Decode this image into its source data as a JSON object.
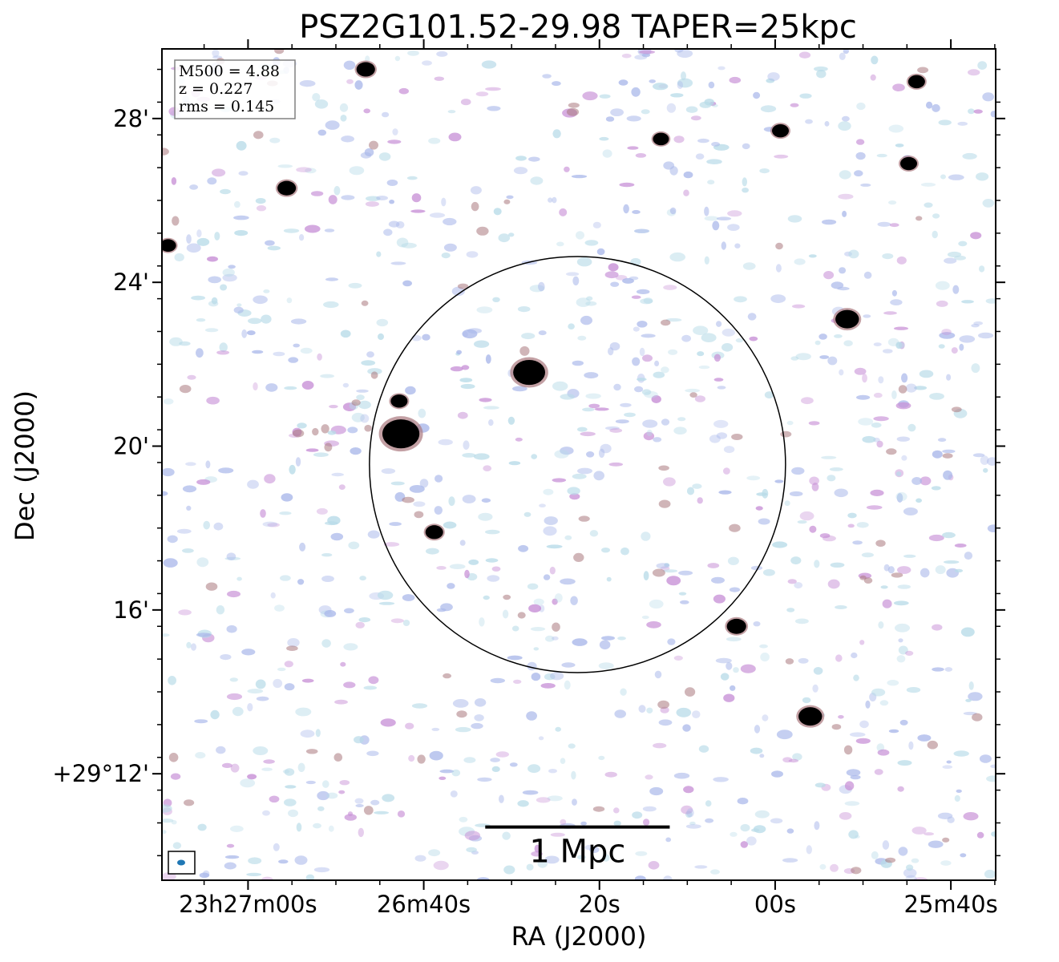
{
  "chart_data": {
    "type": "heatmap",
    "title": "PSZ2G101.52-29.98 TAPER=25kpc",
    "xlabel": "RA (J2000)",
    "ylabel": "Dec (J2000)",
    "x_ticks": [
      {
        "label": "23h27m00s",
        "ra_s": 0
      },
      {
        "label": "26m40s",
        "ra_s": 20
      },
      {
        "label": "20s",
        "ra_s": 40
      },
      {
        "label": "00s",
        "ra_s": 60
      },
      {
        "label": "25m40s",
        "ra_s": 80
      }
    ],
    "y_ticks": [
      {
        "label": "28'",
        "dec_arcmin": 28
      },
      {
        "label": "24'",
        "dec_arcmin": 24
      },
      {
        "label": "20'",
        "dec_arcmin": 20
      },
      {
        "label": "16'",
        "dec_arcmin": 16
      },
      {
        "label": "+29°12'",
        "dec_arcmin": 12
      }
    ],
    "xlim": [
      -9.8,
      85.1
    ],
    "ylim": [
      9.4,
      29.7
    ],
    "info_box": [
      "M500 = 4.88",
      "z = 0.227",
      "rms = 0.145"
    ],
    "scale_bar": {
      "label": "1 Mpc",
      "x_start": 27.0,
      "x_end": 48.0,
      "y": 10.7
    },
    "circle": {
      "x": 37.5,
      "y": 19.55,
      "radius_arcmin": 5.08
    },
    "sources": [
      {
        "x": 13.4,
        "y": 29.2,
        "size": 1.0
      },
      {
        "x": 4.4,
        "y": 26.3,
        "size": 1.0
      },
      {
        "x": 17.4,
        "y": 20.3,
        "size": 3.2
      },
      {
        "x": 17.2,
        "y": 21.1,
        "size": 0.8
      },
      {
        "x": 32.0,
        "y": 21.8,
        "size": 2.6
      },
      {
        "x": 21.2,
        "y": 17.9,
        "size": 0.9
      },
      {
        "x": 55.6,
        "y": 15.6,
        "size": 1.1
      },
      {
        "x": 64.0,
        "y": 13.4,
        "size": 1.6
      },
      {
        "x": 68.2,
        "y": 23.1,
        "size": 1.6
      },
      {
        "x": 60.6,
        "y": 27.7,
        "size": 0.8
      },
      {
        "x": 76.1,
        "y": 28.9,
        "size": 0.8
      },
      {
        "x": 75.2,
        "y": 26.9,
        "size": 0.8
      },
      {
        "x": 47.0,
        "y": 27.5,
        "size": 0.7
      },
      {
        "x": -9.1,
        "y": 24.9,
        "size": 0.7
      }
    ],
    "colors": {
      "faint_noise": "#b8dbe8",
      "noise": "#aab8ea",
      "noise_strong": "#c78fd6",
      "source_halo": "#a9787d",
      "source_core": "#000000",
      "beam": "#1f77b4"
    }
  }
}
